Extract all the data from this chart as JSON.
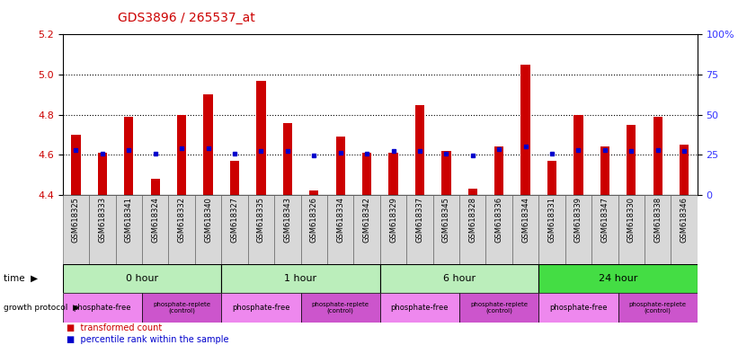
{
  "title": "GDS3896 / 265537_at",
  "samples": [
    "GSM618325",
    "GSM618333",
    "GSM618341",
    "GSM618324",
    "GSM618332",
    "GSM618340",
    "GSM618327",
    "GSM618335",
    "GSM618343",
    "GSM618326",
    "GSM618334",
    "GSM618342",
    "GSM618329",
    "GSM618337",
    "GSM618345",
    "GSM618328",
    "GSM618336",
    "GSM618344",
    "GSM618331",
    "GSM618339",
    "GSM618347",
    "GSM618330",
    "GSM618338",
    "GSM618346"
  ],
  "bar_values": [
    4.7,
    4.61,
    4.79,
    4.48,
    4.8,
    4.9,
    4.57,
    4.97,
    4.76,
    4.42,
    4.69,
    4.61,
    4.61,
    4.85,
    4.62,
    4.43,
    4.64,
    5.05,
    4.57,
    4.8,
    4.64,
    4.75,
    4.79,
    4.65
  ],
  "percentile_values": [
    4.625,
    4.607,
    4.625,
    4.607,
    4.635,
    4.635,
    4.607,
    4.618,
    4.618,
    4.596,
    4.612,
    4.607,
    4.618,
    4.618,
    4.607,
    4.596,
    4.63,
    4.642,
    4.607,
    4.625,
    4.625,
    4.618,
    4.622,
    4.618
  ],
  "bar_color": "#cc0000",
  "percentile_color": "#0000cc",
  "ylim_left": [
    4.4,
    5.2
  ],
  "ylim_right": [
    0,
    100
  ],
  "yticks_left": [
    4.4,
    4.6,
    4.8,
    5.0,
    5.2
  ],
  "yticks_right": [
    0,
    25,
    50,
    75,
    100
  ],
  "hlines": [
    4.6,
    4.8,
    5.0
  ],
  "bar_width": 0.35,
  "background_color": "#ffffff",
  "title_color": "#cc0000",
  "axis_color_left": "#cc0000",
  "axis_color_right": "#3333ff",
  "time_labels": [
    "0 hour",
    "1 hour",
    "6 hour",
    "24 hour"
  ],
  "time_colors": [
    "#bbeebb",
    "#bbeebb",
    "#bbeebb",
    "#44dd44"
  ],
  "time_edges": [
    0,
    6,
    12,
    18,
    24
  ],
  "prot_labels": [
    "phosphate-free",
    "phosphate-replete\n(control)",
    "phosphate-free",
    "phosphate-replete\n(control)",
    "phosphate-free",
    "phosphate-replete\n(control)",
    "phosphate-free",
    "phosphate-replete\n(control)"
  ],
  "prot_edges": [
    0,
    3,
    6,
    9,
    12,
    15,
    18,
    21,
    24
  ],
  "prot_colors_free": "#ee88ee",
  "prot_colors_replete": "#cc55cc"
}
